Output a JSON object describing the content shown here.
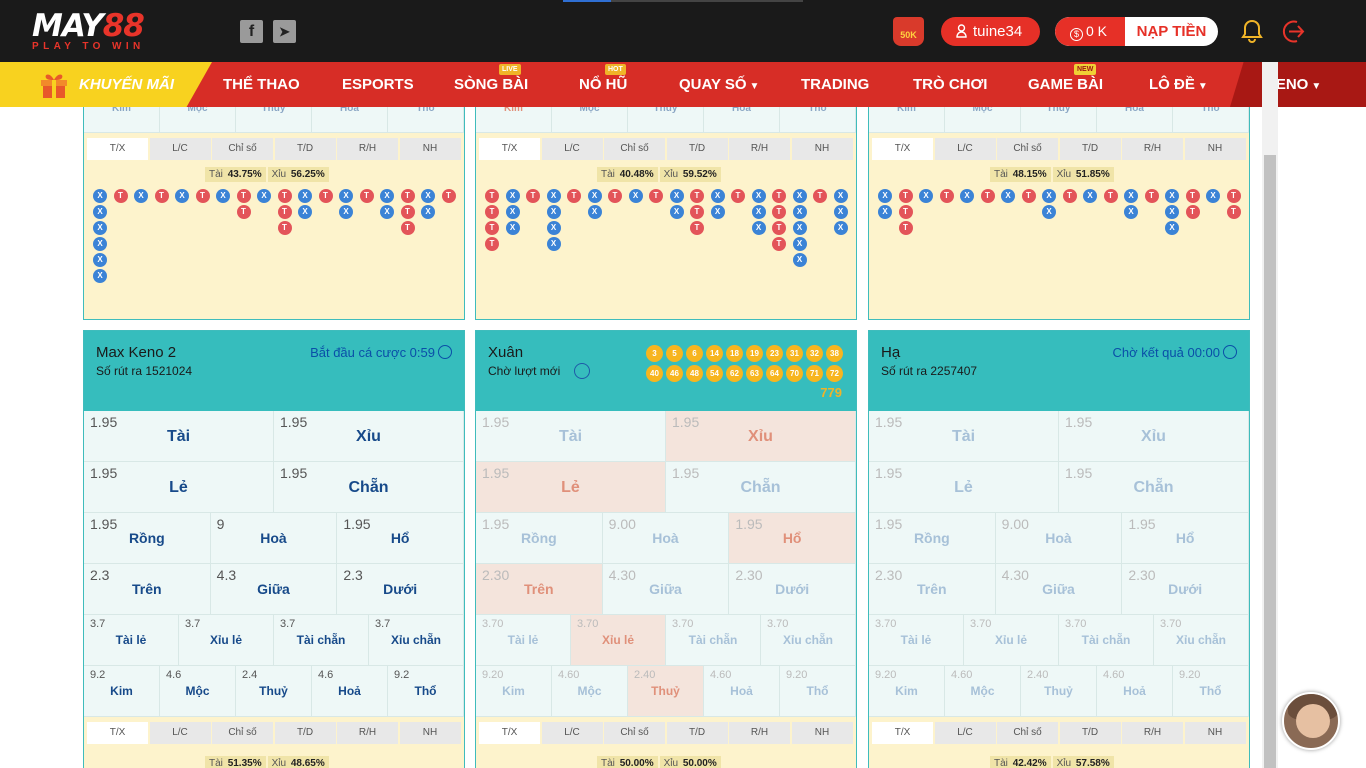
{
  "header": {
    "logo_main": "MAY",
    "logo_num": "88",
    "logo_sub": "PLAY TO WIN",
    "social": [
      {
        "icon": "facebook-icon",
        "glyph": "f"
      },
      {
        "icon": "telegram-icon",
        "glyph": "➤"
      }
    ],
    "promo_badge": "50K",
    "username": "tuine34",
    "balance": "0 K",
    "balance_symbol": "$",
    "deposit_label": "NẠP TIỀN",
    "bell_icon": "bell-icon",
    "logout_icon": "logout-icon"
  },
  "nav": {
    "promo_label": "KHUYẾN MÃI",
    "items": [
      {
        "label": "THỂ THAO"
      },
      {
        "label": "ESPORTS"
      },
      {
        "label": "SÒNG BÀI",
        "tag": "LIVE"
      },
      {
        "label": "NỔ HŨ",
        "tag": "HOT"
      },
      {
        "label": "QUAY SỐ",
        "caret": true
      },
      {
        "label": "TRADING"
      },
      {
        "label": "TRÒ CHƠI"
      },
      {
        "label": "GAME BÀI",
        "tag": "NEW"
      },
      {
        "label": "LÔ ĐỀ",
        "caret": true
      },
      {
        "label": "KENO",
        "caret": true
      }
    ]
  },
  "top_cards": [
    {
      "cut_labels": [
        "Kim",
        "Mộc",
        "Thuỷ",
        "Hoả",
        "Thổ"
      ],
      "tabs": [
        "T/X",
        "L/C",
        "Chỉ số",
        "T/D",
        "R/H",
        "NH"
      ],
      "tai_label": "Tài",
      "tai_pct": "43.75%",
      "xiu_label": "Xỉu",
      "xiu_pct": "56.25%",
      "road": [
        "XXXXXX",
        "T",
        "X",
        "T",
        "X",
        "T",
        "X",
        "TT",
        "X",
        "TTT",
        "XX",
        "T",
        "XX",
        "T",
        "XX",
        "TTT",
        "XX",
        "T"
      ]
    },
    {
      "cut_labels": [
        "Kim",
        "Mộc",
        "Thuỷ",
        "Hoả",
        "Thổ"
      ],
      "tabs": [
        "T/X",
        "L/C",
        "Chỉ số",
        "T/D",
        "R/H",
        "NH"
      ],
      "tai_label": "Tài",
      "tai_pct": "40.48%",
      "xiu_label": "Xỉu",
      "xiu_pct": "59.52%",
      "road": [
        "TTTT",
        "XXX",
        "T",
        "XXXX",
        "T",
        "XX",
        "T",
        "X",
        "T",
        "XX",
        "TTT",
        "XX",
        "T",
        "XXX",
        "TTTT",
        "XXXXX",
        "T",
        "XXX"
      ]
    },
    {
      "cut_labels": [
        "Kim",
        "Mộc",
        "Thuỷ",
        "Hoả",
        "Thổ"
      ],
      "tabs": [
        "T/X",
        "L/C",
        "Chỉ số",
        "T/D",
        "R/H",
        "NH"
      ],
      "tai_label": "Tài",
      "tai_pct": "48.15%",
      "xiu_label": "Xỉu",
      "xiu_pct": "51.85%",
      "road": [
        "XX",
        "TTT",
        "X",
        "T",
        "X",
        "T",
        "X",
        "T",
        "XX",
        "T",
        "X",
        "T",
        "XX",
        "T",
        "XXX",
        "TT",
        "X",
        "TT"
      ]
    }
  ],
  "bottom_cards": [
    {
      "name": "Max Keno 2",
      "sub": "Số rút ra 1521024",
      "status": "Bắt đầu cá cược 0:59",
      "balls": [],
      "total": "",
      "dim": false,
      "rows": [
        [
          {
            "o": "1.95",
            "l": "Tài"
          },
          {
            "o": "1.95",
            "l": "Xỉu"
          }
        ],
        [
          {
            "o": "1.95",
            "l": "Lẻ"
          },
          {
            "o": "1.95",
            "l": "Chẵn"
          }
        ],
        [
          {
            "o": "1.95",
            "l": "Rồng"
          },
          {
            "o": "9",
            "l": "Hoà"
          },
          {
            "o": "1.95",
            "l": "Hổ"
          }
        ],
        [
          {
            "o": "2.3",
            "l": "Trên"
          },
          {
            "o": "4.3",
            "l": "Giữa"
          },
          {
            "o": "2.3",
            "l": "Dưới"
          }
        ],
        [
          {
            "o": "3.7",
            "l": "Tài lẻ"
          },
          {
            "o": "3.7",
            "l": "Xỉu lẻ"
          },
          {
            "o": "3.7",
            "l": "Tài chẵn"
          },
          {
            "o": "3.7",
            "l": "Xỉu chẵn"
          }
        ],
        [
          {
            "o": "9.2",
            "l": "Kim"
          },
          {
            "o": "4.6",
            "l": "Mộc"
          },
          {
            "o": "2.4",
            "l": "Thuỷ"
          },
          {
            "o": "4.6",
            "l": "Hoả"
          },
          {
            "o": "9.2",
            "l": "Thổ"
          }
        ]
      ],
      "tabs": [
        "T/X",
        "L/C",
        "Chỉ số",
        "T/D",
        "R/H",
        "NH"
      ],
      "tai_label": "Tài",
      "tai_pct": "51.35%",
      "xiu_label": "Xỉu",
      "xiu_pct": "48.65%"
    },
    {
      "name": "Xuân",
      "sub": "Chờ lượt mới",
      "status": "",
      "balls": [
        "3",
        "5",
        "6",
        "14",
        "18",
        "19",
        "23",
        "31",
        "32",
        "38",
        "40",
        "46",
        "48",
        "54",
        "62",
        "63",
        "64",
        "70",
        "71",
        "72"
      ],
      "total": "779",
      "dim": true,
      "rows": [
        [
          {
            "o": "1.95",
            "l": "Tài"
          },
          {
            "o": "1.95",
            "l": "Xỉu",
            "hl": true
          }
        ],
        [
          {
            "o": "1.95",
            "l": "Lẻ",
            "hl": true
          },
          {
            "o": "1.95",
            "l": "Chẵn"
          }
        ],
        [
          {
            "o": "1.95",
            "l": "Rồng"
          },
          {
            "o": "9.00",
            "l": "Hoà"
          },
          {
            "o": "1.95",
            "l": "Hổ",
            "hl": true
          }
        ],
        [
          {
            "o": "2.30",
            "l": "Trên",
            "hl": true
          },
          {
            "o": "4.30",
            "l": "Giữa"
          },
          {
            "o": "2.30",
            "l": "Dưới"
          }
        ],
        [
          {
            "o": "3.70",
            "l": "Tài lẻ"
          },
          {
            "o": "3.70",
            "l": "Xỉu lẻ",
            "hl": true
          },
          {
            "o": "3.70",
            "l": "Tài chẵn"
          },
          {
            "o": "3.70",
            "l": "Xỉu chẵn"
          }
        ],
        [
          {
            "o": "9.20",
            "l": "Kim"
          },
          {
            "o": "4.60",
            "l": "Mộc"
          },
          {
            "o": "2.40",
            "l": "Thuỷ",
            "hl": true
          },
          {
            "o": "4.60",
            "l": "Hoả"
          },
          {
            "o": "9.20",
            "l": "Thổ"
          }
        ]
      ],
      "tabs": [
        "T/X",
        "L/C",
        "Chỉ số",
        "T/D",
        "R/H",
        "NH"
      ],
      "tai_label": "Tài",
      "tai_pct": "50.00%",
      "xiu_label": "Xỉu",
      "xiu_pct": "50.00%"
    },
    {
      "name": "Hạ",
      "sub": "Số rút ra 2257407",
      "status": "Chờ kết quả 00:00",
      "balls": [],
      "total": "",
      "dim": true,
      "rows": [
        [
          {
            "o": "1.95",
            "l": "Tài"
          },
          {
            "o": "1.95",
            "l": "Xỉu"
          }
        ],
        [
          {
            "o": "1.95",
            "l": "Lẻ"
          },
          {
            "o": "1.95",
            "l": "Chẵn"
          }
        ],
        [
          {
            "o": "1.95",
            "l": "Rồng"
          },
          {
            "o": "9.00",
            "l": "Hoà"
          },
          {
            "o": "1.95",
            "l": "Hổ"
          }
        ],
        [
          {
            "o": "2.30",
            "l": "Trên"
          },
          {
            "o": "4.30",
            "l": "Giữa"
          },
          {
            "o": "2.30",
            "l": "Dưới"
          }
        ],
        [
          {
            "o": "3.70",
            "l": "Tài lẻ"
          },
          {
            "o": "3.70",
            "l": "Xỉu lẻ"
          },
          {
            "o": "3.70",
            "l": "Tài chẵn"
          },
          {
            "o": "3.70",
            "l": "Xỉu chẵn"
          }
        ],
        [
          {
            "o": "9.20",
            "l": "Kim"
          },
          {
            "o": "4.60",
            "l": "Mộc"
          },
          {
            "o": "2.40",
            "l": "Thuỷ"
          },
          {
            "o": "4.60",
            "l": "Hoả"
          },
          {
            "o": "9.20",
            "l": "Thổ"
          }
        ]
      ],
      "tabs": [
        "T/X",
        "L/C",
        "Chỉ số",
        "T/D",
        "R/H",
        "NH"
      ],
      "tai_label": "Tài",
      "tai_pct": "42.42%",
      "xiu_label": "Xỉu",
      "xiu_pct": "57.58%"
    }
  ],
  "support_avatar": "chat-support-avatar"
}
